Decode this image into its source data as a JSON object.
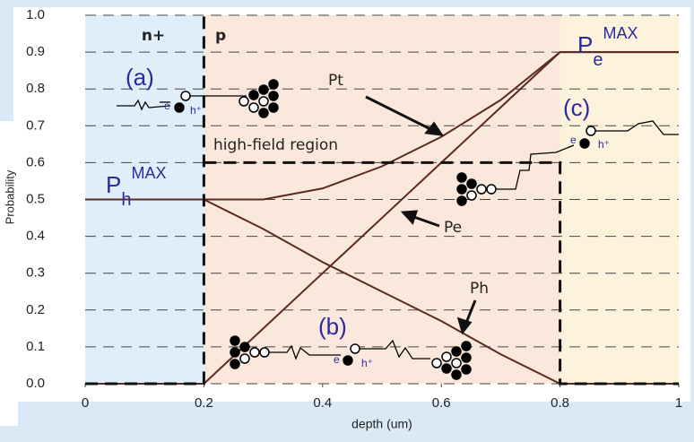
{
  "chart_data": {
    "type": "line",
    "x_label": "depth (um)",
    "y_label": "Probability",
    "x": [
      0,
      0.2,
      0.3,
      0.4,
      0.5,
      0.6,
      0.7,
      0.8,
      1.0
    ],
    "series": [
      {
        "name": "Pt",
        "color": "#5a2a22",
        "values": [
          0.5,
          0.5,
          0.5,
          0.53,
          0.59,
          0.67,
          0.77,
          0.9,
          0.9
        ]
      },
      {
        "name": "Pe",
        "color": "#5a2a22",
        "values": [
          0,
          0,
          0.15,
          0.3,
          0.45,
          0.6,
          0.75,
          0.9,
          0.9
        ]
      },
      {
        "name": "Ph",
        "color": "#5a2a22",
        "values": [
          0.5,
          0.5,
          0.42,
          0.33,
          0.25,
          0.17,
          0.08,
          0,
          0
        ]
      }
    ],
    "boundary": {
      "label": "high-field region",
      "color": "#111",
      "x": [
        0,
        0.2,
        0.2,
        null,
        0.2,
        0.8,
        0.8,
        1
      ],
      "y": [
        0,
        0,
        1,
        null,
        0.6,
        0.6,
        0,
        0
      ]
    },
    "regions": [
      {
        "label": "n+",
        "from": 0,
        "to": 0.2,
        "color": "#e0eefa"
      },
      {
        "label": "p",
        "from": 0.2,
        "to": 0.8,
        "color": "#fbe8dc"
      },
      {
        "from": 0.8,
        "to": 1,
        "color": "#fdf3dc"
      }
    ],
    "annotations": {
      "a": "(a)",
      "b": "(b)",
      "c": "(c)",
      "ph_max": {
        "base": "P",
        "sub": "h",
        "sup": "MAX"
      },
      "pe_max": {
        "base": "P",
        "sub": "e",
        "sup": "MAX"
      },
      "e": "e",
      "h": "h⁺"
    },
    "xlim": [
      0,
      1
    ],
    "ylim": [
      0,
      1
    ],
    "xticks": [
      0,
      0.2,
      0.4,
      0.6,
      0.8,
      1
    ],
    "yticks": [
      {
        "value": 0,
        "label": "0.0"
      },
      {
        "value": 0.1,
        "label": "0.1"
      },
      {
        "value": 0.2,
        "label": "0.2"
      },
      {
        "value": 0.3,
        "label": "0.3"
      },
      {
        "value": 0.4,
        "label": "0.4"
      },
      {
        "value": 0.5,
        "label": "0.5"
      },
      {
        "value": 0.6,
        "label": "0.6"
      },
      {
        "value": 0.7,
        "label": "0.7"
      },
      {
        "value": 0.8,
        "label": "0.8"
      },
      {
        "value": 0.9,
        "label": "0.9"
      },
      {
        "value": 1,
        "label": "1.0"
      }
    ],
    "grid": true
  }
}
